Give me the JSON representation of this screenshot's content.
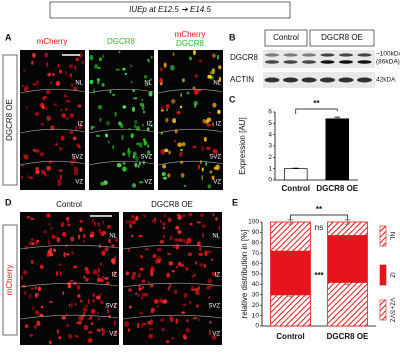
{
  "banner": "IUEp at E12.5 ➔ E14.5",
  "panel_labels": [
    "A",
    "B",
    "C",
    "D",
    "E"
  ],
  "regions": [
    "NL",
    "IZ",
    "SVZ",
    "VZ"
  ],
  "panel_a": {
    "side_label": "DGCR8 OE",
    "columns": [
      "mCherry",
      "DGCR8"
    ],
    "merge": [
      "mCherry",
      "DGCR8"
    ]
  },
  "panel_b": {
    "groups": [
      "Control",
      "DGCR8 OE"
    ],
    "rows": [
      "DGCR8",
      "ACTIN"
    ],
    "sizes": [
      "~100kDA",
      "(86kDA)",
      "42kDA"
    ]
  },
  "panel_d": {
    "side_label": "mCherry",
    "columns": [
      "Control",
      "DGCR8 OE"
    ]
  },
  "chart_data": [
    {
      "type": "bar",
      "y_label": "Expression [AU]",
      "categories": [
        "Control",
        "DGCR8 OE"
      ],
      "values": [
        1,
        5.4
      ],
      "errors": [
        0.05,
        0.15
      ],
      "colors": [
        "#ffffff",
        "#000000"
      ],
      "ylim": [
        0,
        6
      ],
      "yticks": [
        0,
        1,
        2,
        3,
        4,
        5,
        6
      ],
      "annotations": [
        "**"
      ]
    },
    {
      "type": "stacked-bar",
      "y_label": "relative distribution in [%]",
      "categories": [
        "Control",
        "DGCR8 OE"
      ],
      "series": [
        {
          "name": "VZ+SVZ",
          "color": "#e8141c",
          "pattern": "hatch",
          "values": [
            30,
            42
          ],
          "errors": [
            2,
            2
          ]
        },
        {
          "name": "IZ",
          "color": "#e8141c",
          "pattern": "solid",
          "values": [
            42,
            45
          ],
          "errors": [
            3,
            3
          ]
        },
        {
          "name": "NL",
          "color": "#e8141c",
          "pattern": "hatch",
          "values": [
            28,
            13
          ],
          "errors": [
            2,
            2
          ]
        }
      ],
      "ylim": [
        0,
        100
      ],
      "yticks": [
        0,
        10,
        20,
        30,
        40,
        50,
        60,
        70,
        80,
        90,
        100
      ],
      "annotations": [
        "**",
        "ns",
        "***"
      ]
    }
  ]
}
